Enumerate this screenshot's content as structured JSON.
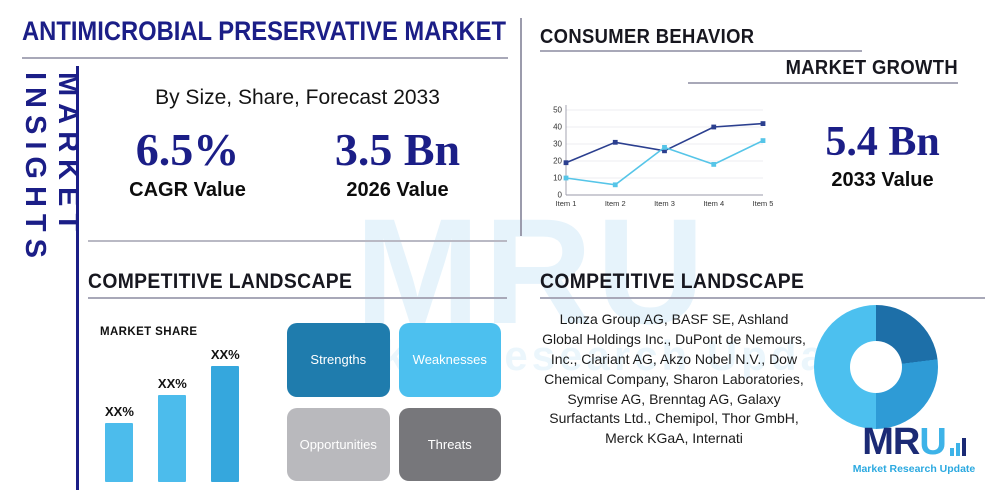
{
  "colors": {
    "navy": "#1b1e87",
    "heading_dark": "#17171f",
    "light_blue": "#4cbcec",
    "steel_blue": "#1f7cad",
    "mid_blue": "#2e9bd6",
    "gray_light": "#b9b9bd",
    "gray_dark": "#77777b",
    "divider_gray": "#a8a8b8"
  },
  "sidebar": {
    "label": "MARKET INSIGHTS"
  },
  "header": {
    "title": "ANTIMICROBIAL PRESERVATIVE MARKET",
    "subtitle": "By Size, Share, Forecast 2033"
  },
  "stats": {
    "cagr": {
      "value": "6.5%",
      "label": "CAGR Value"
    },
    "base": {
      "value": "3.5 Bn",
      "label": "2026 Value"
    },
    "forecast": {
      "value": "5.4 Bn",
      "label": "2033 Value"
    }
  },
  "sections": {
    "consumer_behavior": "CONSUMER BEHAVIOR",
    "market_growth": "MARKET GROWTH",
    "competitive_landscape_left": "COMPETITIVE LANDSCAPE",
    "competitive_landscape_right": "COMPETITIVE LANDSCAPE",
    "market_share": "MARKET SHARE"
  },
  "swot": [
    {
      "label": "Strengths",
      "color": "#1f7cad"
    },
    {
      "label": "Weaknesses",
      "color": "#4cc0ef"
    },
    {
      "label": "Opportunities",
      "color": "#b9b9bd"
    },
    {
      "label": "Threats",
      "color": "#77777b"
    }
  ],
  "companies": "Lonza Group AG, BASF SE, Ashland Global Holdings Inc., DuPont de Nemours, Inc., Clariant AG, Akzo Nobel N.V., Dow Chemical Company, Sharon Laboratories, Symrise AG, Brenntag AG, Galaxy Surfactants Ltd., Chemipol, Thor GmbH, Merck KGaA, Internati",
  "logo": {
    "mr": "MR",
    "u": "U",
    "tagline": "Market Research Update"
  },
  "watermark": {
    "line1": "MRU",
    "line2": "Market Research Update"
  },
  "chart_data": [
    {
      "type": "line",
      "title": "Consumer Behavior / Market Growth",
      "x": [
        "Item 1",
        "Item 2",
        "Item 3",
        "Item 4",
        "Item 5"
      ],
      "series": [
        {
          "name": "series-dark-blue",
          "color": "#2b3f8f",
          "values": [
            19,
            31,
            26,
            40,
            42
          ]
        },
        {
          "name": "series-light-blue",
          "color": "#56c5e8",
          "values": [
            10,
            6,
            28,
            18,
            32
          ]
        }
      ],
      "ylim": [
        0,
        50
      ],
      "yticks": [
        0,
        10,
        20,
        30,
        40,
        50
      ],
      "grid": true,
      "legend": false
    },
    {
      "type": "bar",
      "title": "Market Share",
      "categories": [
        "XX%",
        "XX%",
        "XX%"
      ],
      "values": [
        30,
        44,
        59
      ],
      "ylim": [
        0,
        70
      ],
      "bar_colors": [
        "#4cbcec",
        "#4cbcec",
        "#35a7dd"
      ],
      "xlabel": "",
      "ylabel": ""
    },
    {
      "type": "pie",
      "donut": true,
      "title": "Competitive Landscape Share",
      "segments": [
        {
          "label": "segment-dark-blue",
          "value": 23,
          "color": "#1d6fa8"
        },
        {
          "label": "segment-mid-blue",
          "value": 27,
          "color": "#2e9bd6"
        },
        {
          "label": "segment-light-blue",
          "value": 50,
          "color": "#4cc0ef"
        }
      ]
    }
  ]
}
